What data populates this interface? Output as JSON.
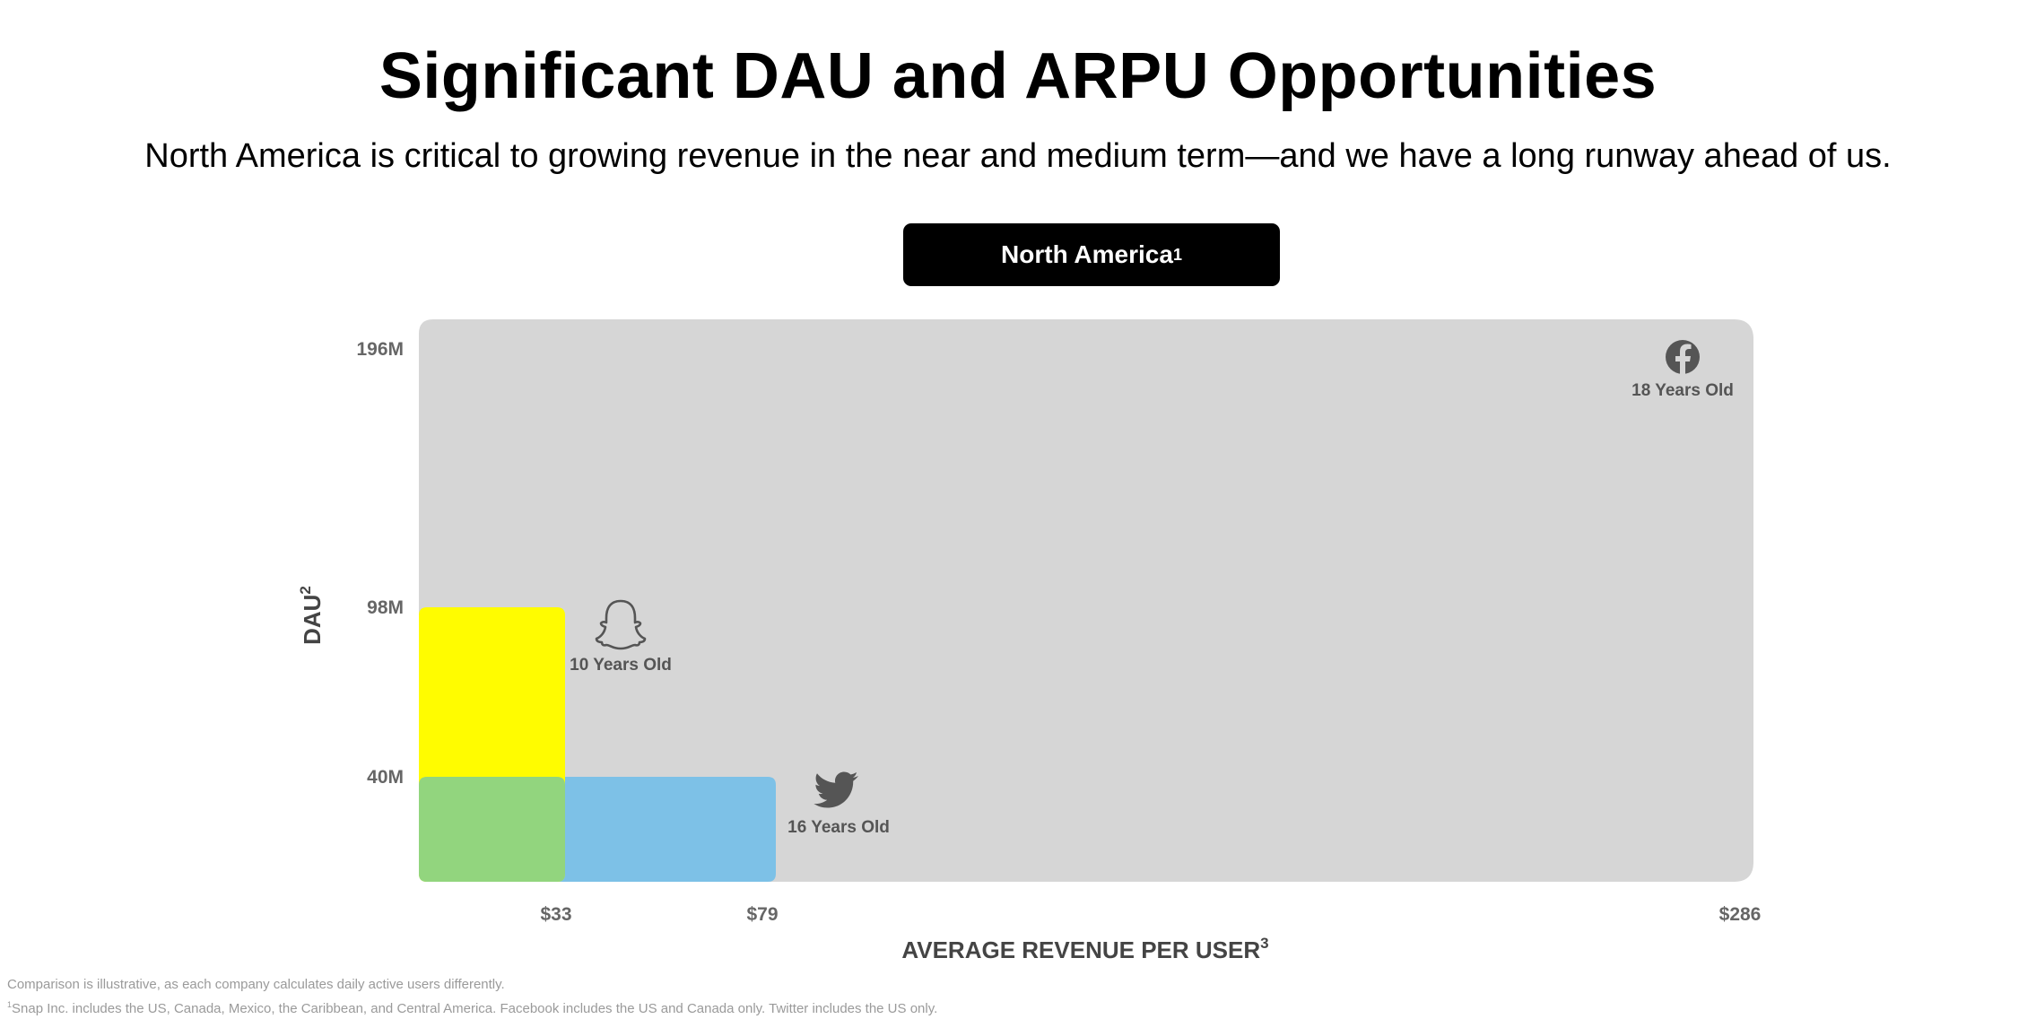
{
  "header": {
    "title": "Significant DAU and ARPU Opportunities",
    "subtitle": "North America is critical to growing revenue in the near and medium term—and we have a long runway ahead of us."
  },
  "region_button": {
    "label": "North America",
    "sup": "1"
  },
  "chart_data": {
    "type": "bar",
    "subtype": "area-rectangles",
    "title": "North America",
    "xlabel": "AVERAGE REVENUE PER USER",
    "xlabel_sup": "3",
    "ylabel": "DAU",
    "ylabel_sup": "2",
    "x_ticks": [
      "$33",
      "$79",
      "$286"
    ],
    "y_ticks": [
      "196M",
      "98M",
      "40M"
    ],
    "x_range": [
      0,
      286
    ],
    "y_range": [
      0,
      196
    ],
    "grid": false,
    "series": [
      {
        "icon": "facebook-icon",
        "arpu": 286,
        "dau": 196,
        "age_label": "18 Years Old",
        "color": "#d6d6d6"
      },
      {
        "icon": "snapchat-ghost-icon",
        "arpu": 33,
        "dau": 98,
        "age_label": "10 Years Old",
        "color": "#fffc00"
      },
      {
        "icon": "twitter-bird-icon",
        "arpu": 79,
        "dau": 40,
        "age_label": "16 Years Old",
        "color": "#7dc1e7"
      }
    ],
    "overlap_color": "#92d57e"
  },
  "footnotes": {
    "line1": "Comparison is illustrative, as each company calculates daily active users differently.",
    "line2_sup": "1",
    "line2": "Snap Inc. includes the US, Canada, Mexico, the Caribbean, and Central America. Facebook includes the US and Canada only. Twitter includes the US only."
  }
}
